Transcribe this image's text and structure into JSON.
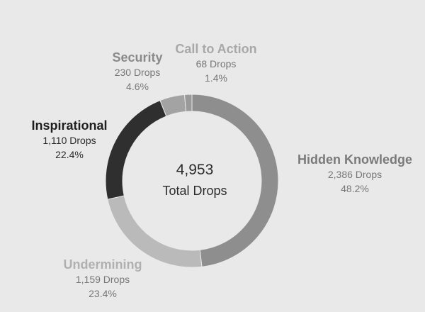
{
  "chart_data": {
    "type": "pie",
    "donut": true,
    "total": {
      "value": "4,953",
      "caption": "Total Drops"
    },
    "slices": [
      {
        "name": "Hidden Knowledge",
        "value": 2386,
        "value_label": "2,386 Drops",
        "percent": 48.2,
        "percent_label": "48.2%",
        "color": "#8e8e8e",
        "label_color": "#7a7a7a"
      },
      {
        "name": "Undermining",
        "value": 1159,
        "value_label": "1,159 Drops",
        "percent": 23.4,
        "percent_label": "23.4%",
        "color": "#bababa",
        "label_color": "#b0b0b0"
      },
      {
        "name": "Inspirational",
        "value": 1110,
        "value_label": "1,110 Drops",
        "percent": 22.4,
        "percent_label": "22.4%",
        "color": "#2f2f2f",
        "label_color": "#1f1f1f"
      },
      {
        "name": "Security",
        "value": 230,
        "value_label": "230 Drops",
        "percent": 4.6,
        "percent_label": "4.6%",
        "color": "#a3a3a3",
        "label_color": "#8a8a8a"
      },
      {
        "name": "Call to Action",
        "value": 68,
        "value_label": "68 Drops",
        "percent": 1.4,
        "percent_label": "1.4%",
        "color": "#9a9a9a",
        "label_color": "#a8a8a8"
      }
    ]
  }
}
